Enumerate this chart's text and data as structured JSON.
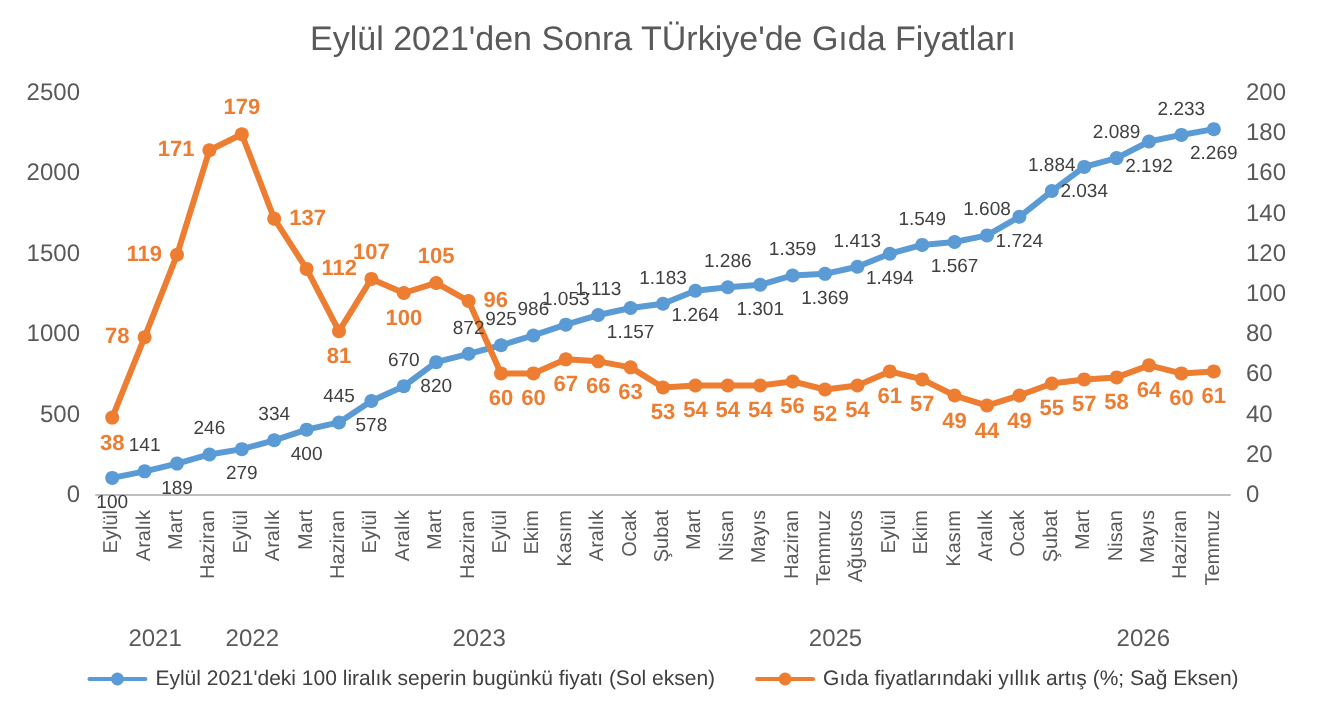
{
  "chart_data": {
    "type": "line",
    "title": "Eylül 2021'den Sonra TÜrkiye'de Gıda Fiyatları",
    "categories": [
      "Eylül",
      "Aralık",
      "Mart",
      "Haziran",
      "Eylül",
      "Aralık",
      "Mart",
      "Haziran",
      "Eylül",
      "Aralık",
      "Mart",
      "Haziran",
      "Eylül",
      "Ekim",
      "Kasım",
      "Aralık",
      "Ocak",
      "Şubat",
      "Mart",
      "Nisan",
      "Mayıs",
      "Haziran",
      "Temmuz",
      "Ağustos",
      "Eylül",
      "Ekim",
      "Kasım",
      "Aralık",
      "Ocak",
      "Şubat",
      "Mart",
      "Nisan",
      "Mayıs",
      "Haziran",
      "Temmuz"
    ],
    "series": [
      {
        "name": "Eylül 2021'deki 100 liralık seperin bugünkü fiyatı (Sol eksen)",
        "color": "#5b9bd5",
        "values": [
          100,
          141,
          189,
          246,
          279,
          334,
          400,
          445,
          578,
          670,
          820,
          872,
          925,
          986,
          1053,
          1113,
          1157,
          1183,
          1264,
          1286,
          1301,
          1359,
          1369,
          1413,
          1494,
          1549,
          1567,
          1608,
          1724,
          1884,
          2034,
          2089,
          2192,
          2233,
          2269
        ],
        "value_labels": [
          "100",
          "141",
          "189",
          "246",
          "279",
          "334",
          "400",
          "445",
          "578",
          "670",
          "820",
          "872",
          "925",
          "986",
          "1.053",
          "1.113",
          "1.157",
          "1.183",
          "1.264",
          "1.286",
          "1.301",
          "1.359",
          "1.369",
          "1.413",
          "1.494",
          "1.549",
          "1.567",
          "1.608",
          "1.724",
          "1.884",
          "2.034",
          "2.089",
          "2.192",
          "2.233",
          "2.269"
        ]
      },
      {
        "name": "Gıda fiyatlarındaki yıllık artış (%; Sağ Eksen)",
        "color": "#ed7d31",
        "axis": "y2",
        "values": [
          38,
          78,
          119,
          171,
          179,
          137,
          112,
          81,
          107,
          100,
          105,
          96,
          60,
          60,
          67,
          66,
          63,
          53,
          54,
          54,
          54,
          56,
          52,
          54,
          61,
          57,
          49,
          44,
          49,
          55,
          57,
          58,
          64,
          60,
          61
        ],
        "data_labels": true
      }
    ],
    "annotations": [
      "2021",
      "2022",
      "2023",
      "2025",
      "2026"
    ],
    "ylim": [
      0,
      2500
    ],
    "yticks": [
      0,
      500,
      1000,
      1500,
      2000,
      2500
    ],
    "y2lim": [
      0,
      200
    ],
    "y2ticks": [
      0,
      20,
      40,
      60,
      80,
      100,
      120,
      140,
      160,
      180,
      200
    ],
    "marker": "circle",
    "line_style": "solid",
    "grid": false,
    "legend": "bottom"
  }
}
